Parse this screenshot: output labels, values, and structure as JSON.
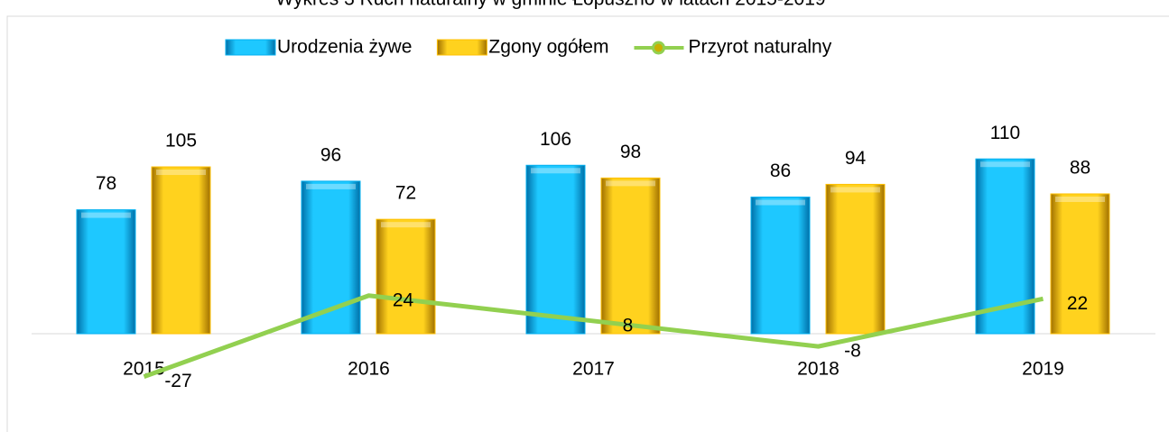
{
  "chart_data": {
    "type": "bar",
    "title": "Wykres 3 Ruch naturalny w gminie Łopuszno w latach 2015-2019",
    "categories": [
      "2015",
      "2016",
      "2017",
      "2018",
      "2019"
    ],
    "series": [
      {
        "name": "Urodzenia żywe",
        "type": "bar",
        "color": "#00b0f0",
        "values": [
          78,
          96,
          106,
          86,
          110
        ]
      },
      {
        "name": "Zgony ogółem",
        "type": "bar",
        "color": "#ffc000",
        "values": [
          105,
          72,
          98,
          94,
          88
        ]
      },
      {
        "name": "Przyrot naturalny",
        "type": "line",
        "color": "#92d050",
        "values": [
          -27,
          24,
          8,
          -8,
          22
        ]
      }
    ],
    "ylim": [
      -40,
      120
    ]
  }
}
